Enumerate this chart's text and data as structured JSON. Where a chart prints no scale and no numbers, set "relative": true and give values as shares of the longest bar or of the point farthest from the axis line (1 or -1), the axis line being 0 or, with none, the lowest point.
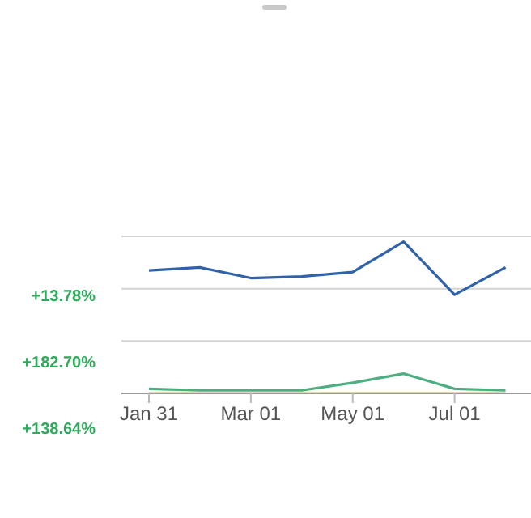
{
  "chart_data": {
    "type": "line",
    "relative": true,
    "categories": [
      "Jan 31",
      null,
      "Mar 01",
      null,
      "May 01",
      null,
      "Jul 01",
      null
    ],
    "series": [
      {
        "color": "#2f62a8",
        "values": [
          0.81,
          0.83,
          0.76,
          0.77,
          0.8,
          1,
          0.65,
          0.83
        ]
      },
      {
        "color": "#4caf82",
        "values": [
          0.03,
          0.02,
          0.02,
          0.02,
          0.07,
          0.13,
          0.03,
          0.02
        ]
      },
      {
        "color": "#c9a86a",
        "values": [
          0,
          0,
          0,
          0,
          0,
          0,
          0,
          0
        ]
      }
    ],
    "annotations": [
      "+13.78%",
      "+182.70%",
      "+138.64%"
    ],
    "ref_lines": [
      {
        "axis": "y",
        "value": 0.345,
        "color": "#d4d4d4"
      },
      {
        "axis": "y",
        "value": 0.69,
        "color": "#d4d4d4"
      },
      {
        "axis": "y",
        "value": 1.035,
        "color": "#d4d4d4"
      }
    ],
    "marker": "none",
    "line_style": "solid"
  }
}
